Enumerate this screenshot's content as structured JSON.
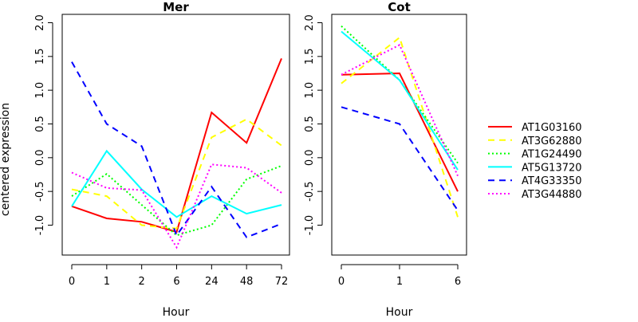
{
  "chart_data": {
    "type": "line",
    "ylabel": "centered expression",
    "legend_position": "right",
    "series_styles": [
      {
        "name": "AT1G03160",
        "color": "#ff0000",
        "dash": "solid"
      },
      {
        "name": "AT3G62880",
        "color": "#ffff00",
        "dash": "dashed"
      },
      {
        "name": "AT1G24490",
        "color": "#00ff00",
        "dash": "dotted"
      },
      {
        "name": "AT5G13720",
        "color": "#00ffff",
        "dash": "solid"
      },
      {
        "name": "AT4G33350",
        "color": "#0000ff",
        "dash": "dashed"
      },
      {
        "name": "AT3G44880",
        "color": "#ff00ff",
        "dash": "dotted"
      }
    ],
    "panels": [
      {
        "title": "Mer",
        "xlabel": "Hour",
        "categories": [
          "0",
          "1",
          "2",
          "6",
          "24",
          "48",
          "72"
        ],
        "ylim": [
          -1.4,
          2.1
        ],
        "yticks": [
          "-1.0",
          "-0.5",
          "0.0",
          "0.5",
          "1.0",
          "1.5",
          "2.0"
        ],
        "series": [
          {
            "name": "AT1G03160",
            "values": [
              -0.72,
              -0.9,
              -0.95,
              -1.1,
              0.67,
              0.22,
              1.47
            ]
          },
          {
            "name": "AT3G62880",
            "values": [
              -0.47,
              -0.57,
              -1.0,
              -1.05,
              0.3,
              0.57,
              0.18
            ]
          },
          {
            "name": "AT1G24490",
            "values": [
              -0.57,
              -0.24,
              -0.7,
              -1.15,
              -1.0,
              -0.32,
              -0.12
            ]
          },
          {
            "name": "AT5G13720",
            "values": [
              -0.72,
              0.1,
              -0.47,
              -0.88,
              -0.57,
              -0.83,
              -0.7
            ]
          },
          {
            "name": "AT4G33350",
            "values": [
              1.42,
              0.5,
              0.17,
              -1.15,
              -0.43,
              -1.18,
              -0.98
            ]
          },
          {
            "name": "AT3G44880",
            "values": [
              -0.22,
              -0.45,
              -0.48,
              -1.33,
              -0.1,
              -0.15,
              -0.52
            ]
          }
        ]
      },
      {
        "title": "Cot",
        "xlabel": "Hour",
        "categories": [
          "0",
          "1",
          "6"
        ],
        "ylim": [
          -1.4,
          2.1
        ],
        "yticks": [
          "-1.0",
          "-0.5",
          "0.0",
          "0.5",
          "1.0",
          "1.5",
          "2.0"
        ],
        "series": [
          {
            "name": "AT1G03160",
            "values": [
              1.23,
              1.25,
              -0.5
            ]
          },
          {
            "name": "AT3G62880",
            "values": [
              1.1,
              1.78,
              -0.88
            ]
          },
          {
            "name": "AT1G24490",
            "values": [
              1.95,
              1.15,
              -0.08
            ]
          },
          {
            "name": "AT5G13720",
            "values": [
              1.87,
              1.15,
              -0.18
            ]
          },
          {
            "name": "AT4G33350",
            "values": [
              0.75,
              0.5,
              -0.78
            ]
          },
          {
            "name": "AT3G44880",
            "values": [
              1.23,
              1.67,
              -0.27
            ]
          }
        ]
      }
    ]
  }
}
